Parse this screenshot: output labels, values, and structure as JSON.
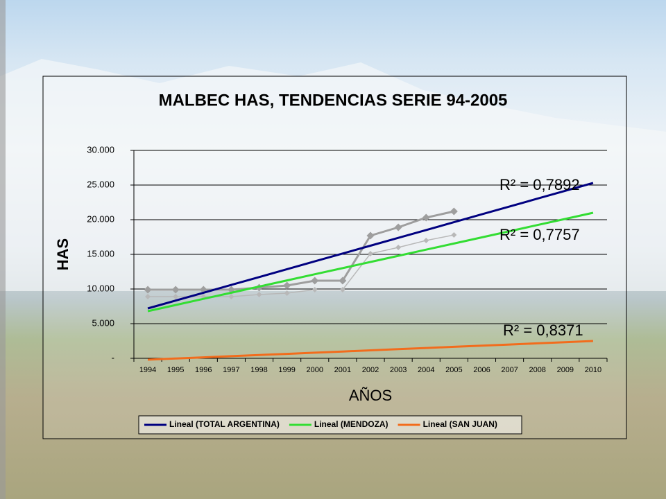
{
  "chart_data": {
    "type": "line",
    "title": "MALBEC HAS, TENDENCIAS SERIE 94-2005",
    "y_label": "HAS",
    "x_label": "AÑOS",
    "categories": [
      "1994",
      "1995",
      "1996",
      "1997",
      "1998",
      "1999",
      "2000",
      "2001",
      "2002",
      "2003",
      "2004",
      "2005",
      "2006",
      "2007",
      "2008",
      "2009",
      "2010"
    ],
    "ylim": [
      0,
      30000
    ],
    "yticks": [
      {
        "value": 0,
        "label": "-"
      },
      {
        "value": 5000,
        "label": "5.000"
      },
      {
        "value": 10000,
        "label": "10.000"
      },
      {
        "value": 15000,
        "label": "15.000"
      },
      {
        "value": 20000,
        "label": "20.000"
      },
      {
        "value": 25000,
        "label": "25.000"
      },
      {
        "value": 30000,
        "label": "30.000"
      }
    ],
    "grid": true,
    "series": [
      {
        "color": "#9e9e9e",
        "marker": "diamond",
        "width": 3,
        "values": [
          9900,
          9900,
          9900,
          9900,
          10200,
          10500,
          11200,
          11200,
          17700,
          18900,
          20300,
          21200,
          null,
          null,
          null,
          null,
          null
        ]
      },
      {
        "color": "#b8b8b8",
        "marker": "diamond",
        "width": 1.5,
        "values": [
          8900,
          8900,
          8900,
          8900,
          9200,
          9400,
          9900,
          9900,
          15100,
          16000,
          17000,
          17800,
          null,
          null,
          null,
          null,
          null
        ]
      },
      {
        "name": "Lineal (TOTAL ARGENTINA)",
        "color": "#000080",
        "width": 3,
        "values": [
          7200,
          8330,
          9460,
          10590,
          11720,
          12860,
          13990,
          15120,
          16250,
          17380,
          18510,
          19640,
          20780,
          21910,
          23040,
          24170,
          25300
        ]
      },
      {
        "name": "Lineal (MENDOZA)",
        "color": "#33dd33",
        "width": 3,
        "values": [
          6800,
          7690,
          8580,
          9460,
          10350,
          11240,
          12130,
          13010,
          13900,
          14790,
          15680,
          16560,
          17450,
          18340,
          19230,
          20110,
          21000
        ]
      },
      {
        "name": "Lineal (SAN JUAN)",
        "color": "#f26c1c",
        "width": 3,
        "values": [
          -200,
          -30,
          140,
          310,
          480,
          640,
          810,
          980,
          1150,
          1320,
          1490,
          1660,
          1820,
          1990,
          2160,
          2330,
          2500
        ]
      }
    ],
    "annotations": [
      "R² = 0,7892",
      "R² = 0,7757",
      "R² = 0,8371"
    ]
  }
}
